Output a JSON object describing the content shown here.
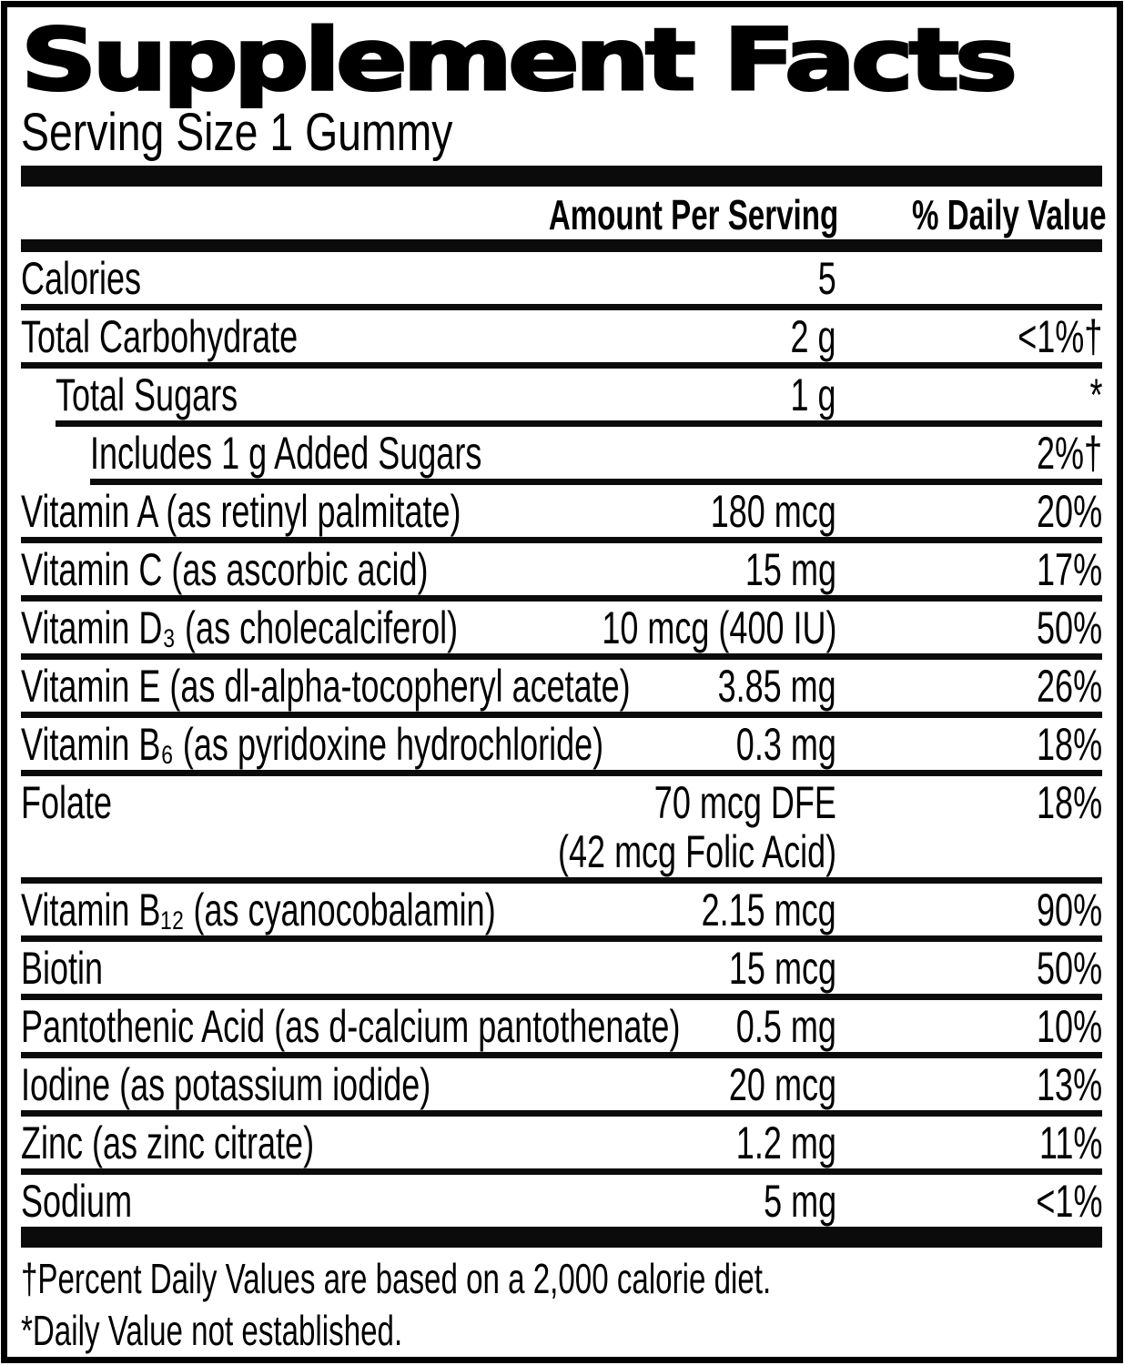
{
  "title": "Supplement Facts",
  "serving_size": "Serving Size 1 Gummy",
  "columns": {
    "amount": "Amount Per Serving",
    "daily_value": "% Daily Value"
  },
  "rows": [
    {
      "label": "Calories",
      "amount": "5",
      "dv": "",
      "indent": 0
    },
    {
      "label": "Total Carbohydrate",
      "amount": "2 g",
      "dv": "<1%†",
      "indent": 0
    },
    {
      "label": "Total Sugars",
      "amount": "1 g",
      "dv": "*",
      "indent": 1
    },
    {
      "label": "Includes 1 g Added Sugars",
      "amount": "",
      "dv": "2%†",
      "indent": 2
    },
    {
      "label": "Vitamin A (as retinyl palmitate)",
      "amount": "180 mcg",
      "dv": "20%",
      "indent": 0
    },
    {
      "label": "Vitamin C (as ascorbic acid)",
      "amount": "15 mg",
      "dv": "17%",
      "indent": 0
    },
    {
      "label": "Vitamin D₃ (as cholecalciferol)",
      "amount": "10 mcg (400 IU)",
      "dv": "50%",
      "indent": 0
    },
    {
      "label": "Vitamin E (as dl-alpha-tocopheryl acetate)",
      "amount": "3.85 mg",
      "dv": "26%",
      "indent": 0
    },
    {
      "label": "Vitamin B₆ (as pyridoxine hydrochloride)",
      "amount": "0.3 mg",
      "dv": "18%",
      "indent": 0
    },
    {
      "label": "Folate",
      "amount": "70 mcg DFE",
      "amount2": "(42 mcg Folic Acid)",
      "dv": "18%",
      "indent": 0
    },
    {
      "label": "Vitamin B₁₂ (as cyanocobalamin)",
      "amount": "2.15 mcg",
      "dv": "90%",
      "indent": 0
    },
    {
      "label": "Biotin",
      "amount": "15 mcg",
      "dv": "50%",
      "indent": 0
    },
    {
      "label": "Pantothenic Acid (as d-calcium pantothenate)",
      "amount": "0.5 mg",
      "dv": "10%",
      "indent": 0
    },
    {
      "label": "Iodine (as potassium iodide)",
      "amount": "20 mcg",
      "dv": "13%",
      "indent": 0
    },
    {
      "label": "Zinc (as zinc citrate)",
      "amount": "1.2 mg",
      "dv": "11%",
      "indent": 0
    },
    {
      "label": "Sodium",
      "amount": "5 mg",
      "dv": "<1%",
      "indent": 0
    }
  ],
  "footnotes": [
    "†Percent Daily Values are based on a 2,000 calorie diet.",
    "*Daily Value not established."
  ],
  "colors": {
    "text": "#000000",
    "background": "#ffffff",
    "bar": "#0b0b0b"
  }
}
